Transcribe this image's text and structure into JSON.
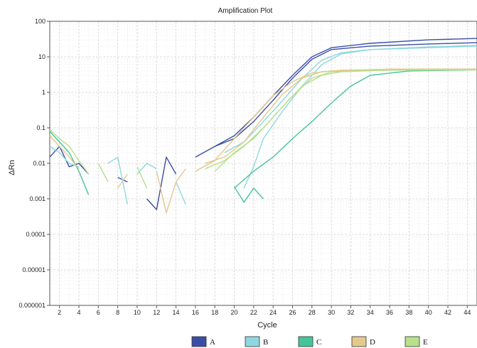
{
  "chart_data": {
    "type": "line",
    "title": "Amplification Plot",
    "xlabel": "Cycle",
    "ylabel": "ΔRn",
    "xlim": [
      1,
      45
    ],
    "ylim": [
      1e-06,
      100
    ],
    "yscale": "log",
    "x_ticks": [
      2,
      4,
      6,
      8,
      10,
      12,
      14,
      16,
      18,
      20,
      22,
      24,
      26,
      28,
      30,
      32,
      34,
      36,
      38,
      40,
      42,
      44
    ],
    "y_ticks": [
      1e-06,
      1e-05,
      0.0001,
      0.001,
      0.01,
      0.1,
      1,
      10,
      100
    ],
    "y_tick_labels": [
      "0.000001",
      "0.00001",
      "0.0001",
      "0.001",
      "0.01",
      "0.1",
      "1",
      "10",
      "100"
    ],
    "grid": true,
    "legend_position": "bottom-center",
    "series": [
      {
        "name": "A",
        "color": "#3a4ea8",
        "curves": [
          [
            [
              1,
              0.015
            ],
            [
              2,
              0.03
            ],
            [
              3,
              0.008
            ],
            [
              4,
              0.01
            ],
            [
              5,
              0.005
            ]
          ],
          [
            [
              8,
              0.004
            ],
            [
              9,
              0.003
            ]
          ],
          [
            [
              11,
              0.001
            ],
            [
              12,
              0.0005
            ],
            [
              13,
              0.015
            ],
            [
              14,
              0.005
            ]
          ],
          [
            [
              16,
              0.015
            ],
            [
              18,
              0.03
            ],
            [
              20,
              0.06
            ],
            [
              22,
              0.2
            ],
            [
              24,
              0.8
            ],
            [
              26,
              3
            ],
            [
              28,
              10
            ],
            [
              30,
              18
            ],
            [
              34,
              24
            ],
            [
              40,
              30
            ],
            [
              45,
              33
            ]
          ],
          [
            [
              18,
              0.03
            ],
            [
              20,
              0.05
            ],
            [
              22,
              0.15
            ],
            [
              24,
              0.6
            ],
            [
              26,
              2.5
            ],
            [
              28,
              8.5
            ],
            [
              30,
              16
            ],
            [
              34,
              20
            ],
            [
              40,
              23
            ],
            [
              45,
              25
            ]
          ]
        ]
      },
      {
        "name": "B",
        "color": "#8fd7df",
        "curves": [
          [
            [
              1,
              0.03
            ],
            [
              2,
              0.02
            ],
            [
              3,
              0.01
            ],
            [
              4,
              0.008
            ]
          ],
          [
            [
              7,
              0.01
            ],
            [
              8,
              0.015
            ],
            [
              9,
              0.0007
            ]
          ],
          [
            [
              10,
              0.005
            ],
            [
              11,
              0.01
            ],
            [
              12,
              0.007
            ]
          ],
          [
            [
              14,
              0.003
            ],
            [
              15,
              0.0007
            ]
          ],
          [
            [
              19,
              0.02
            ],
            [
              21,
              0.04
            ],
            [
              23,
              0.15
            ],
            [
              25,
              0.6
            ],
            [
              27,
              2.5
            ],
            [
              29,
              8
            ],
            [
              31,
              13
            ],
            [
              34,
              16
            ],
            [
              40,
              19
            ],
            [
              45,
              21
            ]
          ],
          [
            [
              21,
              0.002
            ],
            [
              22,
              0.008
            ],
            [
              23,
              0.05
            ],
            [
              25,
              0.3
            ],
            [
              27,
              1.5
            ],
            [
              29,
              6
            ],
            [
              31,
              12
            ],
            [
              34,
              16
            ],
            [
              40,
              18
            ],
            [
              45,
              20
            ]
          ]
        ]
      },
      {
        "name": "C",
        "color": "#45c49a",
        "curves": [
          [
            [
              1,
              0.08
            ],
            [
              2,
              0.04
            ],
            [
              3,
              0.02
            ],
            [
              4,
              0.006
            ],
            [
              5,
              0.0013
            ]
          ],
          [
            [
              20,
              0.0022
            ],
            [
              21,
              0.0008
            ],
            [
              22,
              0.002
            ],
            [
              23,
              0.001
            ]
          ],
          [
            [
              20,
              0.002
            ],
            [
              22,
              0.006
            ],
            [
              24,
              0.015
            ],
            [
              26,
              0.05
            ],
            [
              28,
              0.15
            ],
            [
              30,
              0.5
            ],
            [
              32,
              1.5
            ],
            [
              34,
              3
            ],
            [
              38,
              4
            ],
            [
              45,
              4.3
            ]
          ]
        ]
      },
      {
        "name": "D",
        "color": "#e3c98c",
        "curves": [
          [
            [
              1,
              0.06
            ],
            [
              2,
              0.03
            ],
            [
              3,
              0.015
            ],
            [
              4,
              0.007
            ]
          ],
          [
            [
              8,
              0.002
            ],
            [
              9,
              0.005
            ]
          ],
          [
            [
              12,
              0.006
            ],
            [
              13,
              0.0004
            ],
            [
              14,
              0.003
            ],
            [
              15,
              0.007
            ]
          ],
          [
            [
              16,
              0.006
            ],
            [
              18,
              0.012
            ],
            [
              20,
              0.05
            ],
            [
              22,
              0.2
            ],
            [
              24,
              0.8
            ],
            [
              26,
              2
            ],
            [
              28,
              3.5
            ],
            [
              30,
              4
            ],
            [
              36,
              4.5
            ],
            [
              45,
              4.5
            ]
          ],
          [
            [
              17,
              0.01
            ],
            [
              19,
              0.015
            ],
            [
              21,
              0.04
            ],
            [
              23,
              0.2
            ],
            [
              25,
              0.9
            ],
            [
              27,
              2.5
            ],
            [
              29,
              3.8
            ],
            [
              31,
              4.2
            ],
            [
              37,
              4.5
            ],
            [
              45,
              4.5
            ]
          ]
        ]
      },
      {
        "name": "E",
        "color": "#b7e08a",
        "curves": [
          [
            [
              1,
              0.09
            ],
            [
              2,
              0.05
            ],
            [
              3,
              0.03
            ],
            [
              4,
              0.012
            ],
            [
              5,
              0.005
            ]
          ],
          [
            [
              6,
              0.01
            ],
            [
              7,
              0.003
            ]
          ],
          [
            [
              10,
              0.008
            ],
            [
              11,
              0.002
            ]
          ],
          [
            [
              17,
              0.007
            ],
            [
              19,
              0.012
            ],
            [
              21,
              0.03
            ],
            [
              23,
              0.1
            ],
            [
              25,
              0.4
            ],
            [
              27,
              1.5
            ],
            [
              29,
              3
            ],
            [
              31,
              3.8
            ],
            [
              36,
              4.2
            ],
            [
              45,
              4.3
            ]
          ],
          [
            [
              18,
              0.006
            ],
            [
              20,
              0.02
            ],
            [
              22,
              0.05
            ],
            [
              24,
              0.2
            ],
            [
              26,
              0.8
            ],
            [
              28,
              2.5
            ],
            [
              30,
              3.8
            ],
            [
              35,
              4.2
            ],
            [
              45,
              4.3
            ]
          ]
        ]
      }
    ]
  }
}
